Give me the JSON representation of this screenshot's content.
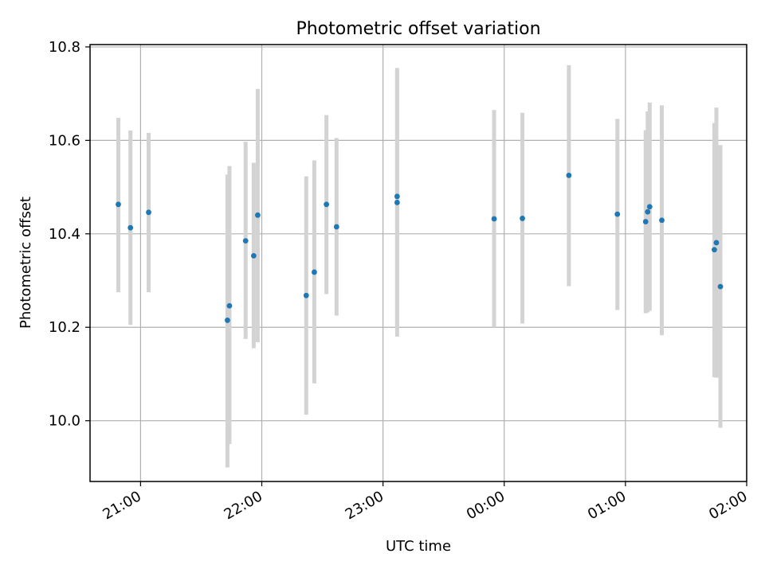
{
  "chart_data": {
    "type": "scatter",
    "title": "Photometric offset variation",
    "xlabel": "UTC time",
    "ylabel": "Photometric offset",
    "xlim": [
      "20:35",
      "02:00"
    ],
    "ylim": [
      9.87,
      10.805
    ],
    "grid": true,
    "x_ticks": [
      "21:00",
      "22:00",
      "23:00",
      "00:00",
      "01:00",
      "02:00"
    ],
    "y_ticks": [
      "10.0",
      "10.2",
      "10.4",
      "10.6",
      "10.8"
    ],
    "colors": {
      "points": "#1f77b4",
      "errorbars": "#d3d3d3",
      "grid": "#b0b0b0"
    },
    "points": [
      {
        "x": "20:49",
        "y": 10.463,
        "err_low": 10.275,
        "err_high": 10.648
      },
      {
        "x": "20:55",
        "y": 10.413,
        "err_low": 10.205,
        "err_high": 10.621
      },
      {
        "x": "21:04",
        "y": 10.446,
        "err_low": 10.275,
        "err_high": 10.616
      },
      {
        "x": "21:43",
        "y": 10.215,
        "err_low": 9.9,
        "err_high": 10.527
      },
      {
        "x": "21:44",
        "y": 10.246,
        "err_low": 9.95,
        "err_high": 10.545
      },
      {
        "x": "21:52",
        "y": 10.385,
        "err_low": 10.175,
        "err_high": 10.597
      },
      {
        "x": "21:56",
        "y": 10.353,
        "err_low": 10.155,
        "err_high": 10.552
      },
      {
        "x": "21:58",
        "y": 10.44,
        "err_low": 10.168,
        "err_high": 10.71
      },
      {
        "x": "22:22",
        "y": 10.268,
        "err_low": 10.013,
        "err_high": 10.523
      },
      {
        "x": "22:26",
        "y": 10.318,
        "err_low": 10.08,
        "err_high": 10.557
      },
      {
        "x": "22:32",
        "y": 10.463,
        "err_low": 10.271,
        "err_high": 10.654
      },
      {
        "x": "22:37",
        "y": 10.415,
        "err_low": 10.225,
        "err_high": 10.605
      },
      {
        "x": "23:07",
        "y": 10.48,
        "err_low": 10.2,
        "err_high": 10.75
      },
      {
        "x": "23:07",
        "y": 10.467,
        "err_low": 10.18,
        "err_high": 10.755
      },
      {
        "x": "23:55",
        "y": 10.432,
        "err_low": 10.2,
        "err_high": 10.665
      },
      {
        "x": "00:09",
        "y": 10.433,
        "err_low": 10.208,
        "err_high": 10.659
      },
      {
        "x": "00:32",
        "y": 10.525,
        "err_low": 10.288,
        "err_high": 10.761
      },
      {
        "x": "00:56",
        "y": 10.442,
        "err_low": 10.237,
        "err_high": 10.646
      },
      {
        "x": "01:10",
        "y": 10.426,
        "err_low": 10.23,
        "err_high": 10.622
      },
      {
        "x": "01:11",
        "y": 10.447,
        "err_low": 10.232,
        "err_high": 10.662
      },
      {
        "x": "01:12",
        "y": 10.458,
        "err_low": 10.235,
        "err_high": 10.681
      },
      {
        "x": "01:18",
        "y": 10.429,
        "err_low": 10.183,
        "err_high": 10.675
      },
      {
        "x": "01:44",
        "y": 10.366,
        "err_low": 10.093,
        "err_high": 10.637
      },
      {
        "x": "01:45",
        "y": 10.381,
        "err_low": 10.092,
        "err_high": 10.67
      },
      {
        "x": "01:47",
        "y": 10.287,
        "err_low": 9.985,
        "err_high": 10.59
      }
    ]
  }
}
